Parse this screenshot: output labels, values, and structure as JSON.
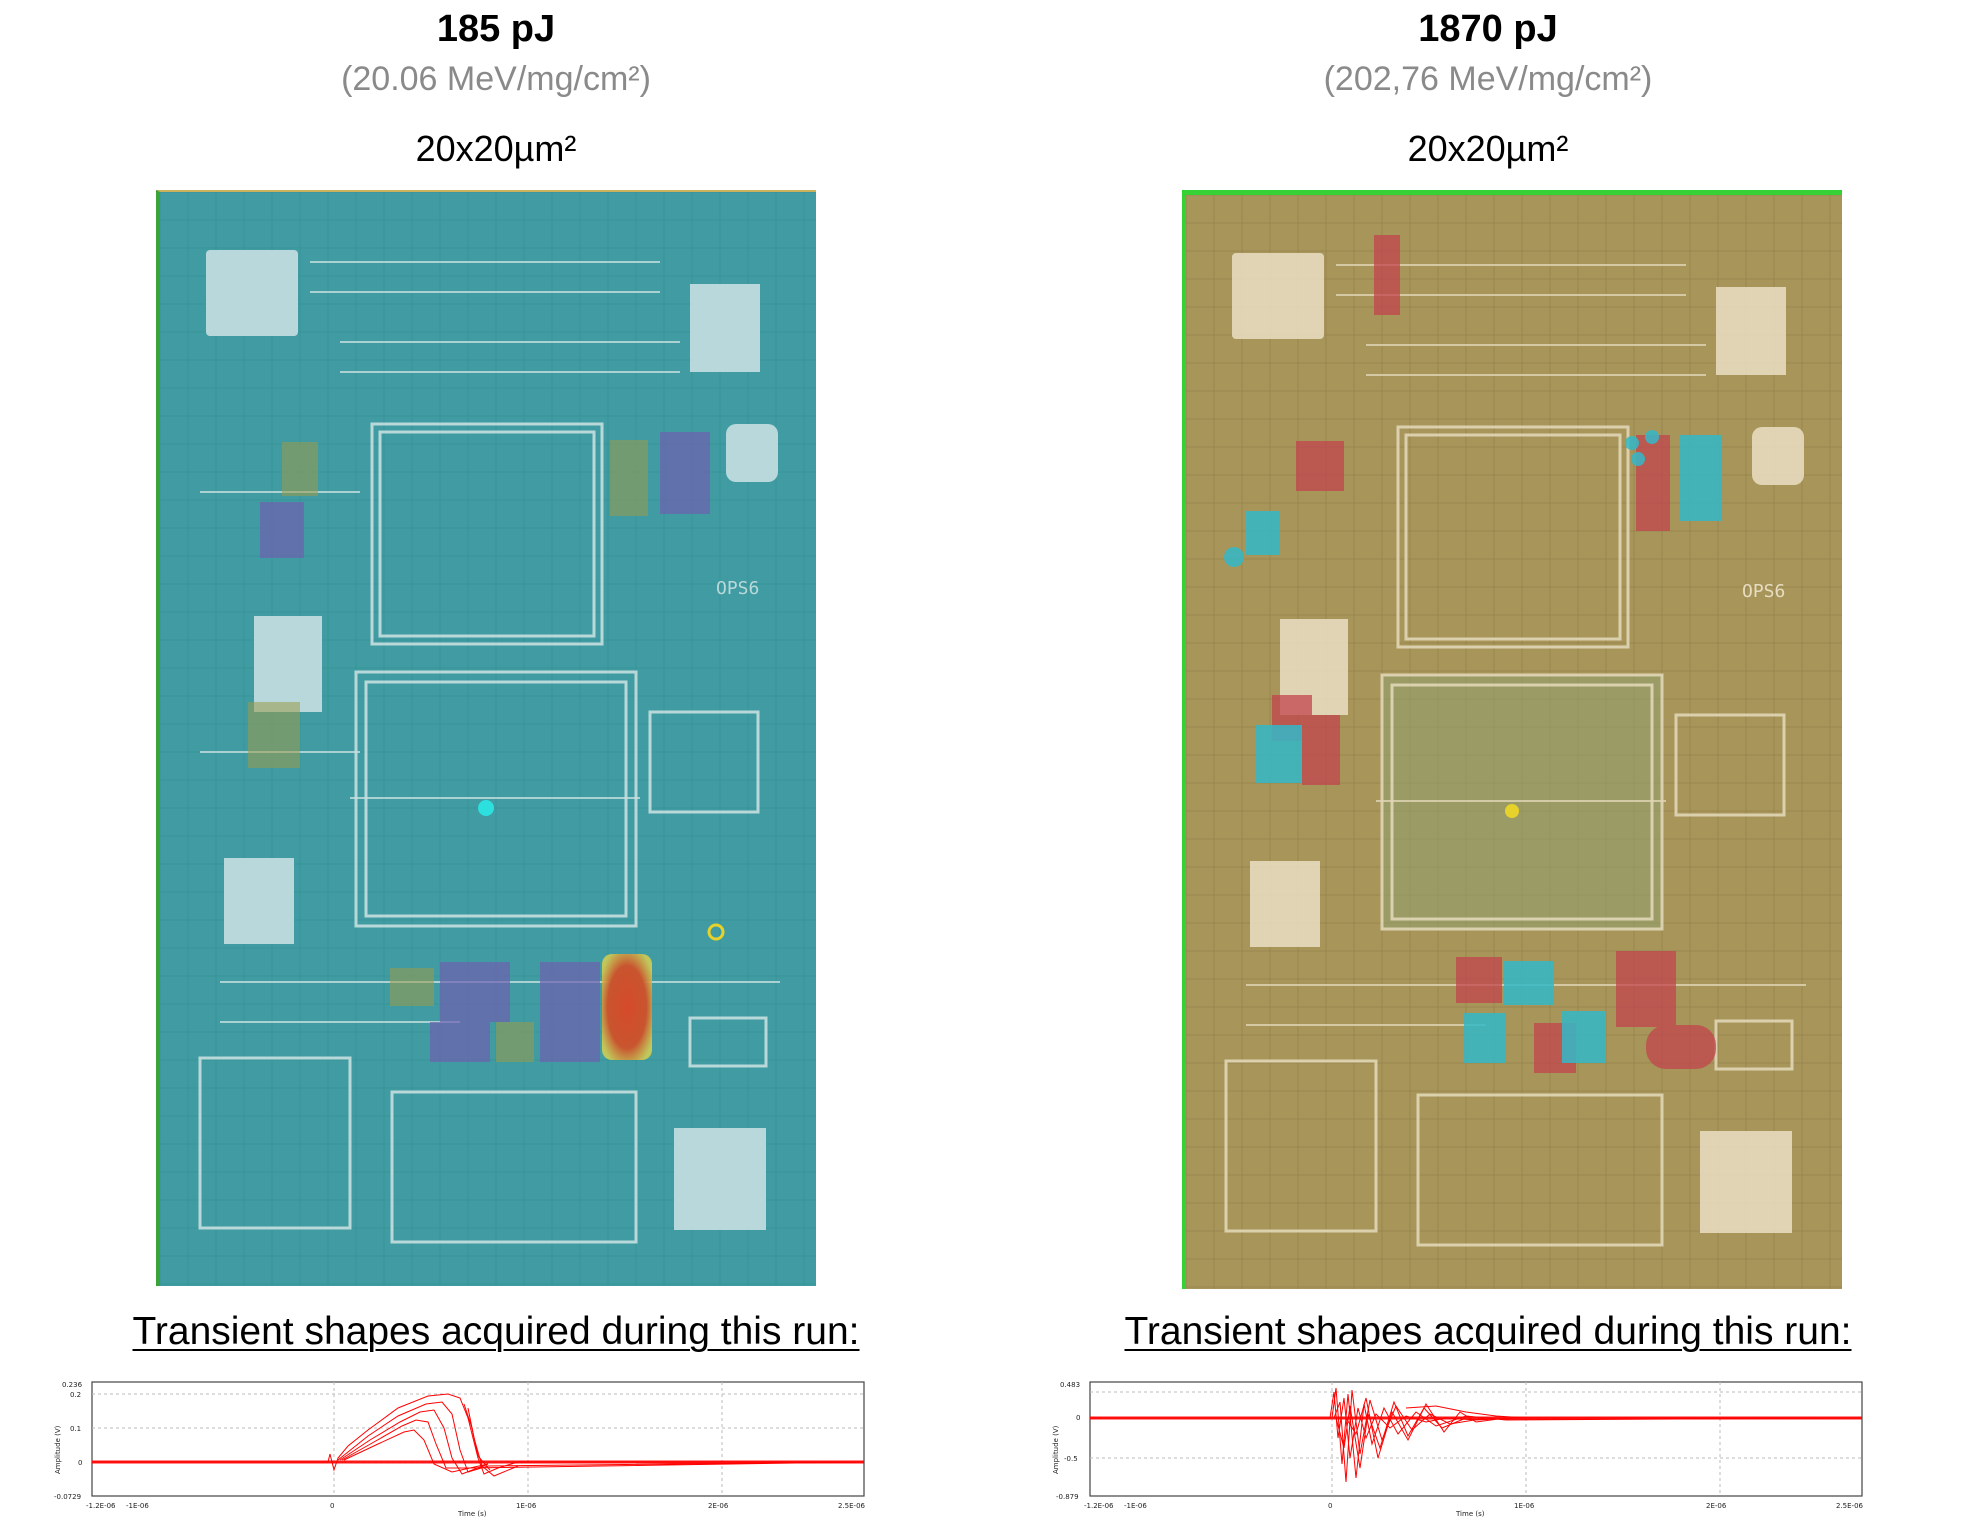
{
  "panels": [
    {
      "energy": "185 pJ",
      "let": "(20.06 MeV/mg/cm²)",
      "spot_size": "20x20µm²",
      "map_tint": "#3aa7a2",
      "map_texture": "die-photo-laser-sensitivity-map",
      "die_label": "OPS6",
      "transient_title": "Transient shapes acquired during this run:",
      "scope": {
        "y_ticks": [
          "0.236",
          "0.2",
          "0.1",
          "0",
          "-0.0729"
        ],
        "x_ticks": [
          "-1.2E-06",
          "-1E-06",
          "0",
          "1E-06",
          "2E-06",
          "2.5E-06"
        ],
        "y_label": "Amplitude (V)",
        "x_label": "Time (s)",
        "trace_color": "#ff0000"
      }
    },
    {
      "energy": "1870 pJ",
      "let": "(202,76 MeV/mg/cm²)",
      "spot_size": "20x20µm²",
      "map_tint": "#a8955a",
      "map_texture": "die-photo-laser-sensitivity-map",
      "die_label": "OPS6",
      "transient_title": "Transient shapes acquired during this run:",
      "scope": {
        "y_ticks": [
          "0.483",
          "0",
          "-0.5",
          "-0.879"
        ],
        "x_ticks": [
          "-1.2E-06",
          "-1E-06",
          "0",
          "1E-06",
          "2E-06",
          "2.5E-06"
        ],
        "y_label": "Amplitude (V)",
        "x_label": "Time (s)",
        "trace_color": "#ff0000"
      }
    }
  ]
}
